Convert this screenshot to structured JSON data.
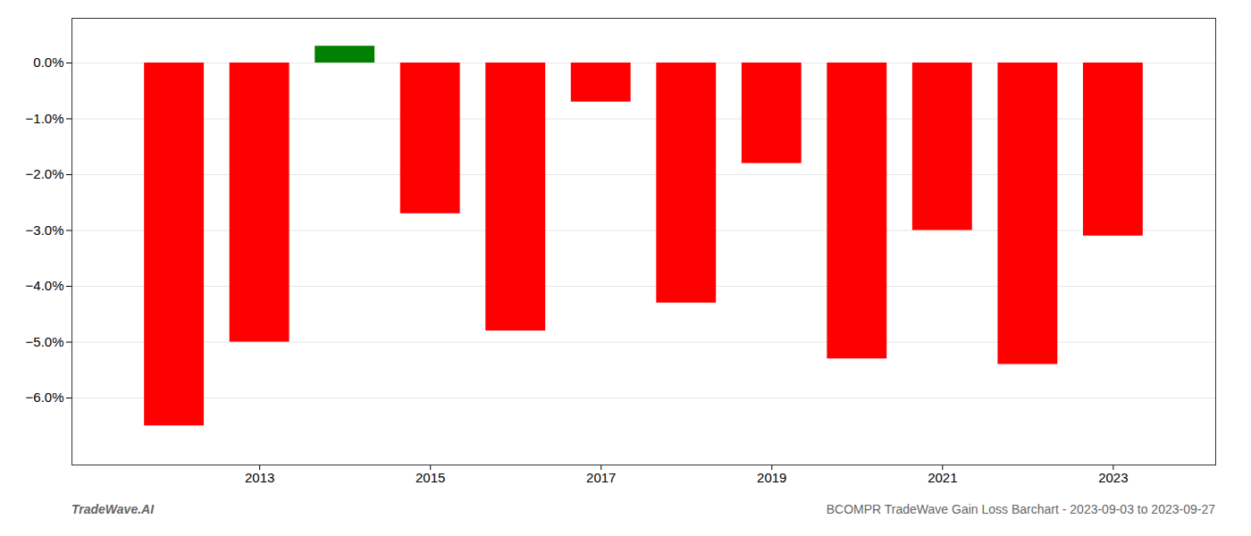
{
  "chart_data": {
    "type": "bar",
    "x": [
      2012,
      2013,
      2014,
      2015,
      2016,
      2017,
      2018,
      2019,
      2020,
      2021,
      2022,
      2023
    ],
    "values": [
      -0.065,
      -0.05,
      0.003,
      -0.027,
      -0.048,
      -0.007,
      -0.043,
      -0.018,
      -0.053,
      -0.03,
      -0.054,
      -0.031
    ],
    "colors": [
      "#ff0000",
      "#ff0000",
      "#008000",
      "#ff0000",
      "#ff0000",
      "#ff0000",
      "#ff0000",
      "#ff0000",
      "#ff0000",
      "#ff0000",
      "#ff0000",
      "#ff0000"
    ],
    "xlim": [
      2010.8,
      2024.2
    ],
    "xticks": [
      2013,
      2015,
      2017,
      2019,
      2021,
      2023
    ],
    "ylim": [
      -0.072,
      0.008
    ],
    "yticks": [
      {
        "value": 0.0,
        "label": "0.0%"
      },
      {
        "value": -0.01,
        "label": "−1.0%"
      },
      {
        "value": -0.02,
        "label": "−2.0%"
      },
      {
        "value": -0.03,
        "label": "−3.0%"
      },
      {
        "value": -0.04,
        "label": "−4.0%"
      },
      {
        "value": -0.05,
        "label": "−5.0%"
      },
      {
        "value": -0.06,
        "label": "−6.0%"
      }
    ],
    "grid": true,
    "annotations": [
      "TradeWave.AI",
      "BCOMPR TradeWave Gain Loss Barchart - 2023-09-03 to 2023-09-27"
    ]
  }
}
